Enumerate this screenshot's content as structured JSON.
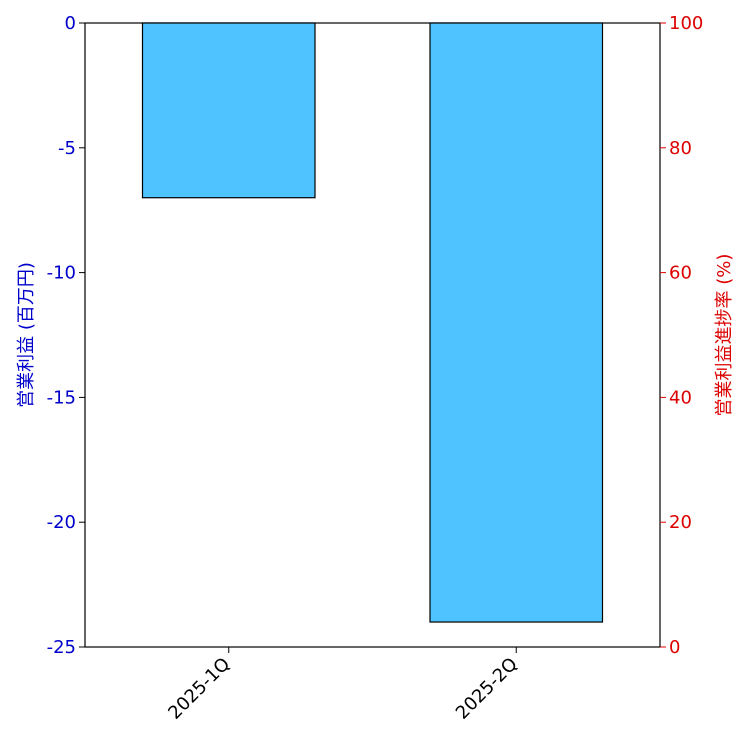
{
  "chart_data": {
    "type": "bar",
    "categories": [
      "2025-1Q",
      "2025-2Q"
    ],
    "series": [
      {
        "values": [
          -7,
          -24
        ],
        "color": "#4fc3ff",
        "axis": "left"
      }
    ],
    "ylabel": "営業利益 (百万円)",
    "ylabel_right": "営業利益進捗率 (%)",
    "ylim": [
      -25,
      0
    ],
    "ylim_right": [
      0,
      100
    ],
    "yticks": [
      0,
      -5,
      -10,
      -15,
      -20,
      -25
    ],
    "yticks_right": [
      100,
      80,
      60,
      40,
      20,
      0
    ],
    "grid": false,
    "colors": {
      "left_axis": "#0000cc",
      "right_axis": "#dd0000",
      "bar_fill": "#4fc3ff",
      "bar_edge": "#000000"
    }
  }
}
